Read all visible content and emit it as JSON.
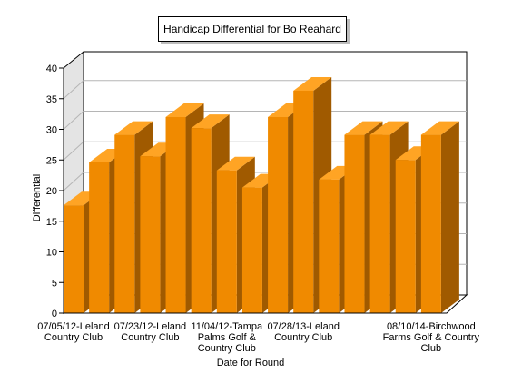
{
  "chart_data": {
    "type": "bar",
    "title": "Handicap Differential for Bo Reahard",
    "xlabel": "Date for Round",
    "ylabel": "Differential",
    "ylim": [
      0,
      40
    ],
    "yticks": [
      0,
      5,
      10,
      15,
      20,
      25,
      30,
      35,
      40
    ],
    "grid": true,
    "three_d": true,
    "bar_color": "#f08a00",
    "categories": [
      "07/05/12-Leland Country Club",
      "",
      "",
      "07/23/12-Leland Country Club",
      "",
      "",
      "11/04/12-Tampa Palms Golf & Country Club",
      "",
      "",
      "07/28/13-Leland Country Club",
      "",
      "",
      "",
      "",
      "08/10/14-Birchwood Farms Golf & Country Club"
    ],
    "values": [
      17.6,
      24.6,
      29.1,
      25.6,
      32.0,
      30.2,
      23.3,
      20.5,
      32.0,
      36.3,
      21.8,
      29.1,
      29.1,
      25.0,
      29.1
    ]
  }
}
